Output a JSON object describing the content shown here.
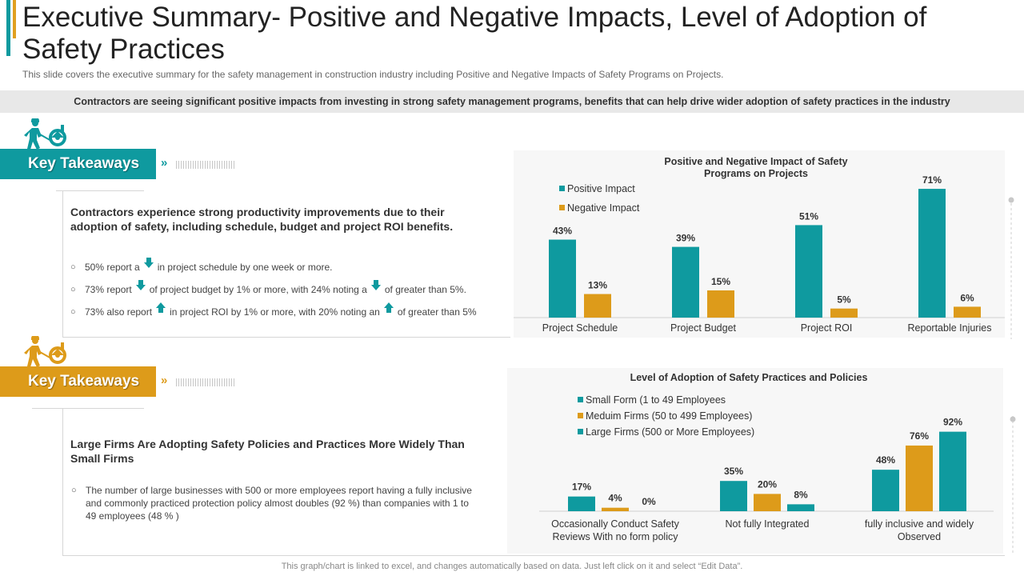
{
  "header": {
    "title": "Executive Summary- Positive and Negative Impacts, Level of Adoption of Safety Practices",
    "subtitle": "This slide covers the executive summary for the safety management in construction industry including Positive and Negative Impacts of Safety Programs on Projects."
  },
  "banner": {
    "text": "Contractors are seeing significant positive impacts from investing in strong safety management programs, benefits that can help drive wider adoption of safety practices in the industry"
  },
  "colors": {
    "teal": "#0f9a9f",
    "gold": "#dd9b1a"
  },
  "section1": {
    "label": "Key Takeaways",
    "arrow": "»",
    "heading": "Contractors experience strong productivity improvements due to their adoption of safety, including schedule, budget and project ROI benefits.",
    "bullets": [
      {
        "icon": "down-arrow-icon",
        "pre": "50% report a",
        "post": "in project schedule by one week or more."
      },
      {
        "icon": "down-arrow-icon",
        "pre": "73% report",
        "mid": "of project budget by 1% or more, with 24% noting a",
        "icon2": "down-arrow-icon",
        "post": "of greater than 5%."
      },
      {
        "icon": "up-arrow-icon",
        "pre": "73% also report",
        "mid": "in project ROI by 1% or more, with 20% noting an",
        "icon2": "up-arrow-icon",
        "post": "of greater than 5%"
      }
    ]
  },
  "section2": {
    "label": "Key Takeaways",
    "arrow": "»",
    "heading": "Large Firms Are Adopting Safety Policies and Practices More Widely Than Small Firms",
    "paragraph": "The number of large businesses with 500 or more employees report having a fully inclusive and commonly practiced protection policy almost doubles (92 %) than companies with 1 to 49 employees (48 % )"
  },
  "chart_data": [
    {
      "type": "bar",
      "title": "Positive and Negative Impact of Safety Programs on Projects",
      "title_lines": [
        "Positive and Negative Impact of Safety",
        "Programs on Projects"
      ],
      "categories": [
        "Project Schedule",
        "Project Budget",
        "Project ROI",
        "Reportable Injuries"
      ],
      "series": [
        {
          "name": "Positive Impact",
          "values": [
            43,
            39,
            51,
            71
          ],
          "color": "#0f9a9f"
        },
        {
          "name": "Negative Impact",
          "values": [
            13,
            15,
            5,
            6
          ],
          "color": "#dd9b1a"
        }
      ],
      "value_suffix": "%",
      "ylim": [
        0,
        75
      ],
      "legend": "top-left"
    },
    {
      "type": "bar",
      "title": "Level of Adoption of Safety Practices and Policies",
      "title_lines": [
        "Level of Adoption of Safety Practices and Policies"
      ],
      "categories": [
        "Occasionally Conduct Safety Reviews With no form policy",
        "Not fully Integrated",
        "fully inclusive and widely Observed"
      ],
      "category_lines": [
        [
          "Occasionally Conduct Safety",
          "Reviews With no form policy"
        ],
        [
          "Not fully Integrated"
        ],
        [
          "fully inclusive and widely",
          "Observed"
        ]
      ],
      "series": [
        {
          "name": "Small Form (1 to 49 Employees",
          "values": [
            17,
            35,
            48
          ],
          "color": "#0f9a9f"
        },
        {
          "name": "Meduim Firms (50 to 499 Employees)",
          "values": [
            4,
            20,
            76
          ],
          "color": "#dd9b1a"
        },
        {
          "name": "Large Firms (500 or More Employees)",
          "values": [
            0,
            8,
            92
          ],
          "color": "#0f9a9f"
        }
      ],
      "value_suffix": "%",
      "ylim": [
        0,
        100
      ],
      "legend": "top-center"
    }
  ],
  "footer": {
    "text": "This graph/chart is linked to excel, and changes automatically based on data. Just left click on it and select “Edit Data”."
  }
}
